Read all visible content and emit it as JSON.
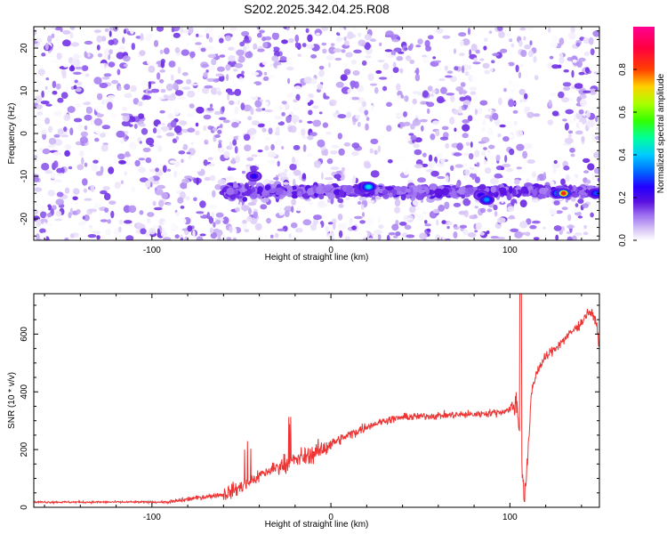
{
  "chart_data": [
    {
      "type": "heatmap",
      "title": "S202.2025.342.04.25.R08",
      "xlabel": "Height of straight line (km)",
      "ylabel": "Frequency (Hz)",
      "xlim": [
        -166,
        150
      ],
      "ylim": [
        -25,
        25
      ],
      "xticks": [
        -100,
        0,
        100
      ],
      "yticks": [
        -20,
        -10,
        0,
        10,
        20
      ],
      "colorbar": {
        "label": "Normalized spectral amplitude",
        "range": [
          0,
          1
        ],
        "ticks": [
          0.0,
          0.2,
          0.4,
          0.6,
          0.8
        ],
        "colors": [
          "#ffffff",
          "#d8c6f6",
          "#9b6cf0",
          "#7a2ff0",
          "#5a10e0",
          "#2400ff",
          "#0066ff",
          "#00ccff",
          "#00ff99",
          "#33ff00",
          "#aaff00",
          "#ffd000",
          "#ff4000",
          "#ff0040",
          "#ff0090"
        ]
      },
      "band": {
        "frequency_hz": -13.5
      },
      "hotspots": [
        {
          "x": -43,
          "y": -10,
          "value": 0.25
        },
        {
          "x": 19,
          "y": -12.5,
          "value": 0.35
        },
        {
          "x": 21,
          "y": -12.5,
          "value": 0.42
        },
        {
          "x": 84,
          "y": -14.5,
          "value": 0.25
        },
        {
          "x": 87,
          "y": -15.5,
          "value": 0.35
        },
        {
          "x": 127,
          "y": -14,
          "value": 0.4
        },
        {
          "x": 130,
          "y": -14,
          "value": 0.85
        },
        {
          "x": 148,
          "y": -14,
          "value": 0.3
        }
      ]
    },
    {
      "type": "line",
      "xlabel": "Height of straight line (km)",
      "ylabel": "SNR (10 * v/v)",
      "xlim": [
        -166,
        150
      ],
      "ylim": [
        0,
        740
      ],
      "xticks": [
        -100,
        0,
        100
      ],
      "yticks": [
        0,
        200,
        400,
        600
      ],
      "series": [
        {
          "name": "SNR",
          "color": "#ee3333",
          "baseline": [
            [
              -166,
              18
            ],
            [
              -90,
              18
            ],
            [
              -80,
              28
            ],
            [
              -60,
              45
            ],
            [
              -50,
              70
            ],
            [
              -45,
              90
            ],
            [
              -40,
              110
            ],
            [
              -30,
              140
            ],
            [
              -20,
              165
            ],
            [
              -10,
              185
            ],
            [
              -5,
              200
            ],
            [
              0,
              220
            ],
            [
              10,
              250
            ],
            [
              20,
              280
            ],
            [
              30,
              300
            ],
            [
              40,
              312
            ],
            [
              60,
              318
            ],
            [
              80,
              322
            ],
            [
              95,
              330
            ],
            [
              100,
              340
            ],
            [
              104,
              360
            ],
            [
              106,
              200
            ],
            [
              108,
              40
            ],
            [
              110,
              160
            ],
            [
              112,
              400
            ],
            [
              115,
              470
            ],
            [
              120,
              520
            ],
            [
              130,
              580
            ],
            [
              140,
              640
            ],
            [
              144,
              680
            ],
            [
              148,
              650
            ],
            [
              150,
              560
            ]
          ],
          "spikes": [
            [
              106,
              760
            ],
            [
              108,
              20
            ]
          ]
        }
      ]
    }
  ]
}
